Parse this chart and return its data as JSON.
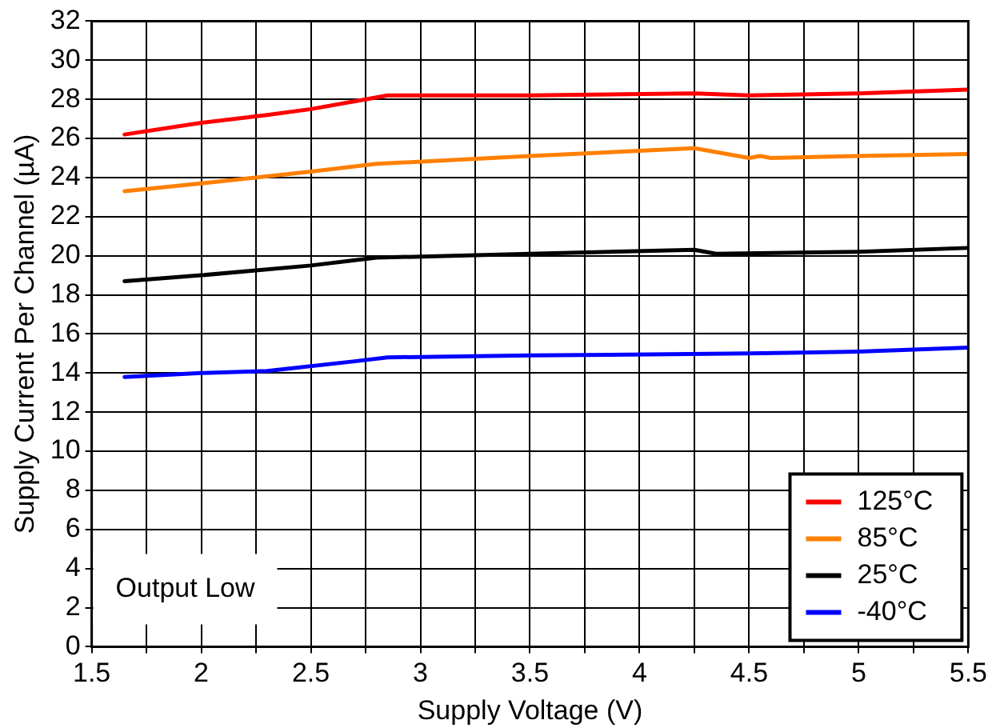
{
  "chart_data": {
    "type": "line",
    "xlabel": "Supply Voltage (V)",
    "ylabel": "Supply Current Per Channel (µA)",
    "xlim": [
      1.5,
      5.5
    ],
    "xticks": [
      1.5,
      {
        "value": 1.75,
        "label": null
      },
      2,
      {
        "value": 2.25,
        "label": null
      },
      2.5,
      {
        "value": 2.75,
        "label": null
      },
      3,
      {
        "value": 3.25,
        "label": null
      },
      3.5,
      {
        "value": 3.75,
        "label": null
      },
      4,
      {
        "value": 4.25,
        "label": null
      },
      4.5,
      {
        "value": 4.75,
        "label": null
      },
      5,
      {
        "value": 5.25,
        "label": null
      },
      5.5
    ],
    "ylim": [
      0,
      32
    ],
    "yticks": [
      0,
      2,
      4,
      6,
      8,
      10,
      12,
      14,
      16,
      18,
      20,
      22,
      24,
      26,
      28,
      30,
      32
    ],
    "grid": true,
    "legend": "bottom right",
    "line_style": "solid",
    "annotations": [
      "Output Low"
    ],
    "series": [
      {
        "name": "125°C",
        "color": "#ff0000",
        "x": [
          1.65,
          2.0,
          2.3,
          2.5,
          2.8,
          2.85,
          3.5,
          4.25,
          4.5,
          5.0,
          5.5
        ],
        "values": [
          26.2,
          26.8,
          27.2,
          27.5,
          28.1,
          28.2,
          28.2,
          28.3,
          28.2,
          28.3,
          28.5
        ]
      },
      {
        "name": "85°C",
        "color": "#ff7f00",
        "x": [
          1.65,
          2.0,
          2.5,
          2.8,
          3.5,
          4.25,
          4.5,
          4.55,
          4.6,
          5.0,
          5.5
        ],
        "values": [
          23.3,
          23.7,
          24.3,
          24.7,
          25.1,
          25.5,
          25.0,
          25.1,
          25.0,
          25.1,
          25.2
        ]
      },
      {
        "name": "25°C",
        "color": "#000000",
        "x": [
          1.65,
          2.0,
          2.5,
          2.8,
          3.5,
          4.25,
          4.35,
          5.0,
          5.5
        ],
        "values": [
          18.7,
          19.0,
          19.5,
          19.9,
          20.1,
          20.3,
          20.1,
          20.2,
          20.4
        ]
      },
      {
        "name": "-40°C",
        "color": "#0000ff",
        "x": [
          1.65,
          2.0,
          2.3,
          2.7,
          2.85,
          3.5,
          4.5,
          5.0,
          5.5
        ],
        "values": [
          13.8,
          14.0,
          14.1,
          14.6,
          14.8,
          14.9,
          15.0,
          15.1,
          15.3
        ]
      }
    ]
  }
}
